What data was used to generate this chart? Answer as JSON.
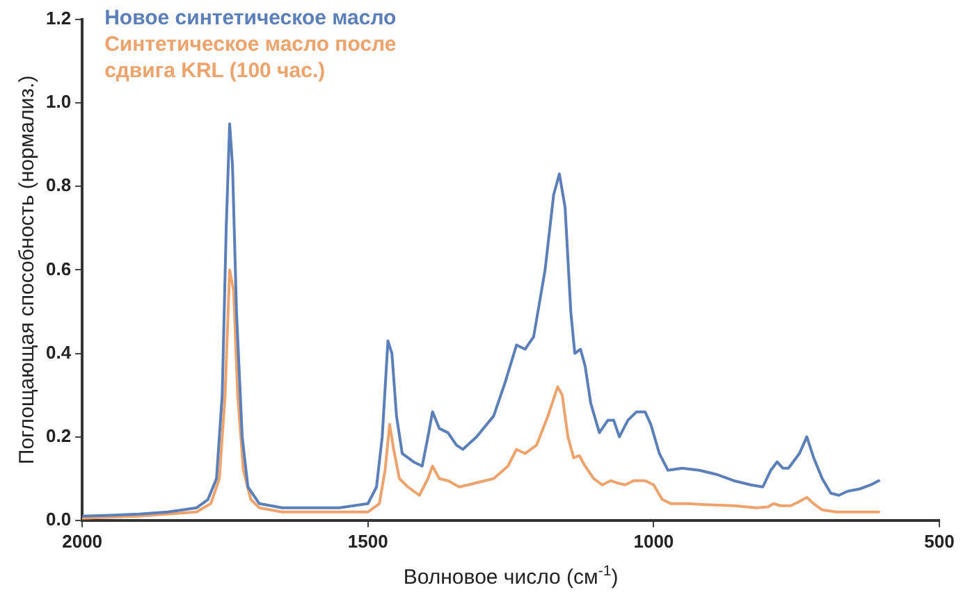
{
  "chart_data": {
    "type": "line",
    "xlabel": "Волновое число (см$^{-1}$)",
    "ylabel": "Поглощающая способность (нормализ.)",
    "xlim": [
      2000,
      500
    ],
    "xticks": [
      2000,
      1500,
      1000,
      500
    ],
    "ylim": [
      0,
      1.2
    ],
    "yticks": [
      {
        "value": 0,
        "label": "0.0"
      },
      {
        "value": 0.2,
        "label": "0.2"
      },
      {
        "value": 0.4,
        "label": "0.4"
      },
      {
        "value": 0.6,
        "label": "0.6"
      },
      {
        "value": 0.8,
        "label": "0.8"
      },
      {
        "value": 1,
        "label": "1.0"
      },
      {
        "value": 1.2,
        "label": "1.2"
      }
    ],
    "grid": false,
    "legend": "top left",
    "marker": "none",
    "line_style": "solid",
    "series": [
      {
        "name": "Новое синтетическое масло",
        "color": "#5b7fb8",
        "x": [
          2000,
          1950,
          1900,
          1850,
          1800,
          1780,
          1765,
          1755,
          1748,
          1742,
          1737,
          1730,
          1720,
          1710,
          1690,
          1650,
          1600,
          1550,
          1500,
          1485,
          1475,
          1465,
          1458,
          1450,
          1440,
          1420,
          1405,
          1395,
          1387,
          1375,
          1360,
          1345,
          1334,
          1310,
          1280,
          1260,
          1240,
          1225,
          1210,
          1190,
          1175,
          1165,
          1155,
          1145,
          1138,
          1128,
          1120,
          1110,
          1095,
          1080,
          1070,
          1060,
          1045,
          1030,
          1015,
          1005,
          990,
          975,
          950,
          920,
          890,
          860,
          830,
          809,
          795,
          784,
          774,
          764,
          745,
          732,
          720,
          705,
          690,
          676,
          660,
          640,
          620,
          606
        ],
        "values": [
          0.01,
          0.012,
          0.015,
          0.02,
          0.03,
          0.05,
          0.1,
          0.3,
          0.7,
          0.95,
          0.85,
          0.5,
          0.2,
          0.08,
          0.04,
          0.03,
          0.03,
          0.03,
          0.04,
          0.08,
          0.2,
          0.43,
          0.4,
          0.25,
          0.16,
          0.14,
          0.13,
          0.2,
          0.26,
          0.22,
          0.21,
          0.18,
          0.17,
          0.2,
          0.25,
          0.33,
          0.42,
          0.41,
          0.44,
          0.6,
          0.78,
          0.83,
          0.75,
          0.5,
          0.4,
          0.41,
          0.37,
          0.28,
          0.21,
          0.24,
          0.24,
          0.2,
          0.24,
          0.26,
          0.26,
          0.23,
          0.16,
          0.12,
          0.125,
          0.12,
          0.11,
          0.095,
          0.085,
          0.08,
          0.12,
          0.14,
          0.125,
          0.125,
          0.16,
          0.2,
          0.15,
          0.1,
          0.065,
          0.06,
          0.07,
          0.075,
          0.085,
          0.095
        ]
      },
      {
        "name": "Синтетическое масло после сдвига KRL (100 час.)",
        "color": "#eda36b",
        "x": [
          2000,
          1900,
          1850,
          1800,
          1775,
          1760,
          1750,
          1742,
          1735,
          1728,
          1718,
          1705,
          1690,
          1650,
          1550,
          1500,
          1480,
          1470,
          1462,
          1455,
          1445,
          1430,
          1410,
          1395,
          1387,
          1375,
          1360,
          1340,
          1310,
          1280,
          1255,
          1240,
          1225,
          1205,
          1185,
          1168,
          1160,
          1150,
          1140,
          1130,
          1120,
          1105,
          1090,
          1075,
          1065,
          1050,
          1035,
          1015,
          1000,
          985,
          970,
          940,
          900,
          860,
          820,
          800,
          790,
          778,
          760,
          745,
          732,
          720,
          705,
          680,
          640,
          606
        ],
        "values": [
          0.005,
          0.01,
          0.015,
          0.02,
          0.04,
          0.1,
          0.3,
          0.6,
          0.55,
          0.3,
          0.12,
          0.05,
          0.03,
          0.02,
          0.02,
          0.02,
          0.04,
          0.12,
          0.23,
          0.17,
          0.1,
          0.08,
          0.06,
          0.1,
          0.13,
          0.1,
          0.095,
          0.08,
          0.09,
          0.1,
          0.13,
          0.17,
          0.16,
          0.18,
          0.25,
          0.32,
          0.3,
          0.2,
          0.15,
          0.155,
          0.13,
          0.1,
          0.085,
          0.095,
          0.09,
          0.085,
          0.095,
          0.095,
          0.085,
          0.05,
          0.04,
          0.04,
          0.037,
          0.035,
          0.03,
          0.032,
          0.04,
          0.035,
          0.035,
          0.045,
          0.055,
          0.04,
          0.025,
          0.02,
          0.02,
          0.02
        ]
      }
    ]
  }
}
